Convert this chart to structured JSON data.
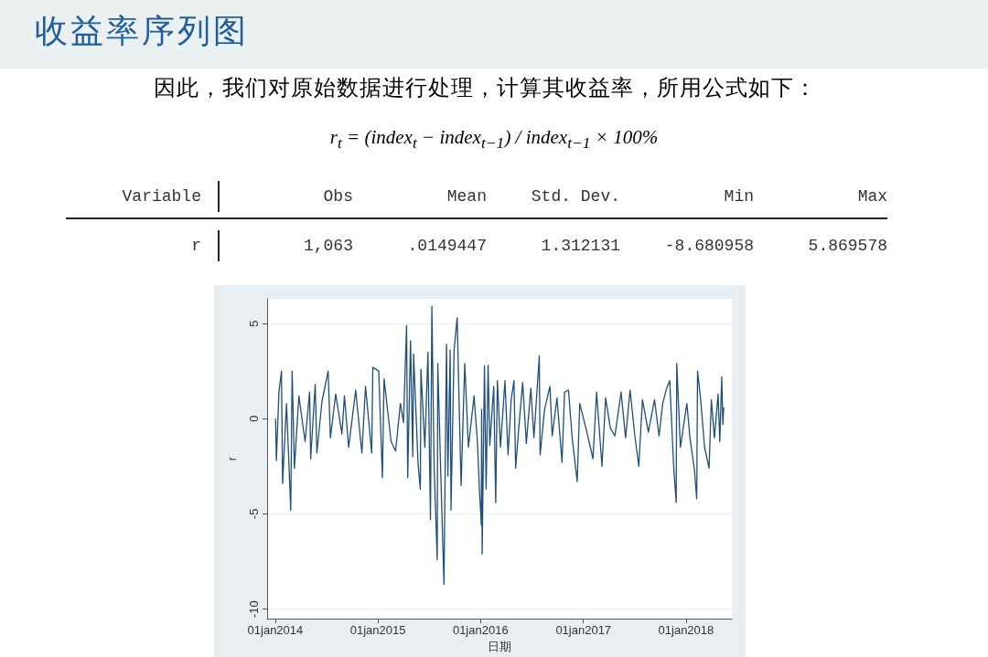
{
  "chart_data": {
    "type": "line",
    "title": "收益率序列图",
    "subtitle": "因此，我们对原始数据进行处理，计算其收益率，所用公式如下：",
    "annotations": [
      "r$_{t}$ = (index$_{t}$ − index$_{t−1}$) / index$_{t−1}$ × 100%",
      "Variable",
      "Obs",
      "Mean",
      "Std. Dev.",
      "Min",
      "Max",
      "r",
      "1,063",
      ".0149447",
      "1.312131",
      "-8.680958",
      "5.869578"
    ],
    "xlabel": "日期",
    "ylabel": "r",
    "x": [
      "2014-01-02",
      "2014-01-05",
      "2014-01-14",
      "2014-01-23",
      "2014-01-27",
      "2014-02-10",
      "2014-02-25",
      "2014-03-02",
      "2014-03-10",
      "2014-03-26",
      "2014-04-17",
      "2014-05-03",
      "2014-05-07",
      "2014-05-23",
      "2014-05-29",
      "2014-06-16",
      "2014-07-08",
      "2014-07-16",
      "2014-08-04",
      "2014-08-26",
      "2014-09-04",
      "2014-09-19",
      "2014-10-14",
      "2014-11-05",
      "2014-11-18",
      "2014-12-10",
      "2014-12-14",
      "2015-01-04",
      "2015-01-17",
      "2015-01-23",
      "2015-02-17",
      "2015-03-05",
      "2015-03-22",
      "2015-04-02",
      "2015-04-13",
      "2015-04-17",
      "2015-04-27",
      "2015-05-05",
      "2015-05-08",
      "2015-05-24",
      "2015-06-01",
      "2015-06-03",
      "2015-06-17",
      "2015-06-28",
      "2015-07-07",
      "2015-07-12",
      "2015-07-20",
      "2015-07-31",
      "2015-08-02",
      "2015-08-11",
      "2015-08-24",
      "2015-09-02",
      "2015-09-07",
      "2015-09-15",
      "2015-09-18",
      "2015-09-29",
      "2015-10-10",
      "2015-10-15",
      "2015-10-24",
      "2015-11-06",
      "2015-11-19",
      "2015-12-09",
      "2015-12-21",
      "2015-12-28",
      "2016-01-04",
      "2016-01-05",
      "2016-01-07",
      "2016-01-15",
      "2016-01-21",
      "2016-01-28",
      "2016-02-03",
      "2016-02-17",
      "2016-02-24",
      "2016-03-01",
      "2016-03-12",
      "2016-03-28",
      "2016-04-08",
      "2016-04-19",
      "2016-04-29",
      "2016-05-05",
      "2016-05-16",
      "2016-05-30",
      "2016-06-12",
      "2016-06-28",
      "2016-07-09",
      "2016-07-28",
      "2016-07-31",
      "2016-08-16",
      "2016-09-04",
      "2016-09-12",
      "2016-09-29",
      "2016-10-17",
      "2016-10-26",
      "2016-11-09",
      "2016-11-22",
      "2016-12-10",
      "2016-12-19",
      "2017-01-10",
      "2017-02-04",
      "2017-02-17",
      "2017-03-08",
      "2017-03-21",
      "2017-04-07",
      "2017-04-23",
      "2017-05-15",
      "2017-05-31",
      "2017-06-16",
      "2017-07-03",
      "2017-07-17",
      "2017-07-30",
      "2017-08-20",
      "2017-09-11",
      "2017-09-27",
      "2017-10-10",
      "2017-10-24",
      "2017-11-04",
      "2017-11-18",
      "2017-11-27",
      "2017-11-29",
      "2017-12-12",
      "2018-01-04",
      "2018-01-15",
      "2018-01-31",
      "2018-02-08",
      "2018-02-11",
      "2018-02-22",
      "2018-03-08",
      "2018-03-24",
      "2018-04-01",
      "2018-04-12",
      "2018-04-25",
      "2018-05-01",
      "2018-05-08",
      "2018-05-12",
      "2018-05-15"
    ],
    "series": [
      {
        "color": "#1f4e79",
        "values": [
          0,
          -2.2,
          1.4,
          2.5,
          -3.4,
          0.8,
          -4.8,
          2.5,
          -2.6,
          1.2,
          -1.2,
          1.4,
          -2.1,
          1.8,
          -1.8,
          0.9,
          2.5,
          -1.0,
          1.3,
          -0.8,
          1.2,
          -1.5,
          1.5,
          -1.8,
          1.7,
          -1.8,
          2.7,
          2.5,
          -3.1,
          2.1,
          -1.2,
          -1.7,
          0.8,
          -0.2,
          4.9,
          -3.1,
          4.1,
          -2.0,
          3.4,
          -2.4,
          -3.7,
          2.6,
          -1.5,
          3.5,
          -5.3,
          5.9,
          -2.5,
          -7.4,
          2.9,
          -2.0,
          -8.7,
          3.9,
          -3.0,
          3.6,
          -4.8,
          3.6,
          5.3,
          2.0,
          -3.5,
          2.9,
          -1.5,
          1.2,
          -1.2,
          -3.7,
          -5.6,
          0.5,
          -7.1,
          2.8,
          -3.7,
          2.8,
          -1.4,
          1.7,
          -4.4,
          2.0,
          -1.5,
          2.0,
          -1.9,
          1.0,
          2.0,
          -2.6,
          -0.5,
          1.9,
          -1.3,
          1.6,
          -1.0,
          3.3,
          -1.9,
          0.5,
          1.7,
          -0.9,
          1.1,
          -2.3,
          1.4,
          1.5,
          -1.0,
          -3.3,
          0.8,
          -0.5,
          -2.1,
          1.4,
          -2.5,
          1.1,
          -0.5,
          -0.9,
          1.4,
          -1.0,
          1.5,
          -0.9,
          -2.5,
          1.0,
          -0.7,
          1.0,
          -0.9,
          0.8,
          1.6,
          2.0,
          -2.5,
          -4.4,
          2.9,
          -1.5,
          0.8,
          -1.0,
          -2.7,
          -4.2,
          2.5,
          1.0,
          -1.5,
          -2.6,
          1.0,
          -1.0,
          1.3,
          -1.2,
          2.2,
          -0.3,
          0.6
        ]
      }
    ],
    "xlim": [
      "2013-12-03",
      "2018-06-13"
    ],
    "xticks": [
      {
        "value": "2014-01-01",
        "label": "01jan2014"
      },
      {
        "value": "2015-01-01",
        "label": "01jan2015"
      },
      {
        "value": "2016-01-01",
        "label": "01jan2016"
      },
      {
        "value": "2017-01-01",
        "label": "01jan2017"
      },
      {
        "value": "2018-01-01",
        "label": "01jan2018"
      }
    ],
    "ylim": [
      -10.5,
      6.3
    ],
    "yticks": [
      -10,
      -5,
      0,
      5
    ],
    "grid": "y"
  }
}
